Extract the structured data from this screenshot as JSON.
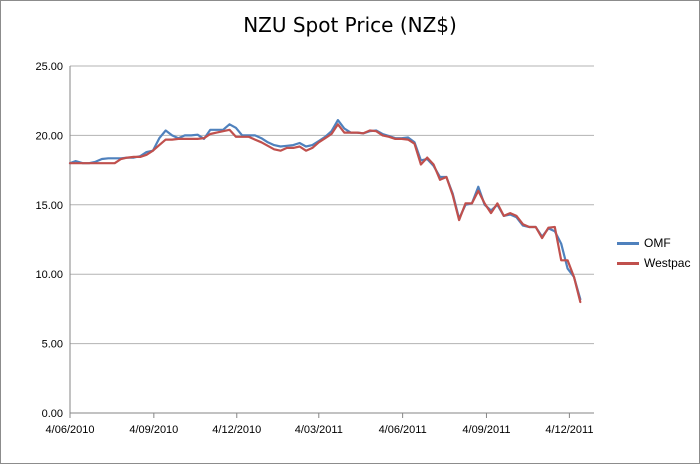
{
  "chart_data": {
    "type": "line",
    "title": "NZU Spot Price (NZ$)",
    "xlabel": "",
    "ylabel": "",
    "ylim": [
      0,
      25
    ],
    "y_ticks": [
      "0.00",
      "5.00",
      "10.00",
      "15.00",
      "20.00",
      "25.00"
    ],
    "x_ticks": [
      "4/06/2010",
      "4/09/2010",
      "4/12/2010",
      "4/03/2011",
      "4/06/2011",
      "4/09/2011",
      "4/12/2011"
    ],
    "x_range": [
      "2010-06-04",
      "2011-12-31"
    ],
    "grid": "horizontal",
    "legend_position": "right",
    "series": [
      {
        "name": "OMF",
        "color": "#4f81bd",
        "points": [
          [
            "2010-06-04",
            18.0
          ],
          [
            "2010-06-10",
            18.15
          ],
          [
            "2010-06-18",
            18.0
          ],
          [
            "2010-06-25",
            18.0
          ],
          [
            "2010-07-02",
            18.1
          ],
          [
            "2010-07-09",
            18.3
          ],
          [
            "2010-07-16",
            18.35
          ],
          [
            "2010-07-23",
            18.35
          ],
          [
            "2010-07-30",
            18.35
          ],
          [
            "2010-08-06",
            18.4
          ],
          [
            "2010-08-13",
            18.4
          ],
          [
            "2010-08-20",
            18.5
          ],
          [
            "2010-08-27",
            18.8
          ],
          [
            "2010-09-03",
            18.9
          ],
          [
            "2010-09-10",
            19.8
          ],
          [
            "2010-09-17",
            20.35
          ],
          [
            "2010-09-24",
            20.0
          ],
          [
            "2010-10-01",
            19.8
          ],
          [
            "2010-10-08",
            20.0
          ],
          [
            "2010-10-15",
            20.0
          ],
          [
            "2010-10-22",
            20.05
          ],
          [
            "2010-10-29",
            19.75
          ],
          [
            "2010-11-05",
            20.4
          ],
          [
            "2010-11-12",
            20.4
          ],
          [
            "2010-11-19",
            20.4
          ],
          [
            "2010-11-26",
            20.8
          ],
          [
            "2010-12-03",
            20.55
          ],
          [
            "2010-12-10",
            20.0
          ],
          [
            "2010-12-17",
            20.0
          ],
          [
            "2010-12-24",
            20.0
          ],
          [
            "2010-12-31",
            19.8
          ],
          [
            "2011-01-07",
            19.5
          ],
          [
            "2011-01-14",
            19.3
          ],
          [
            "2011-01-21",
            19.2
          ],
          [
            "2011-01-28",
            19.25
          ],
          [
            "2011-02-04",
            19.3
          ],
          [
            "2011-02-11",
            19.45
          ],
          [
            "2011-02-18",
            19.2
          ],
          [
            "2011-02-25",
            19.3
          ],
          [
            "2011-03-04",
            19.6
          ],
          [
            "2011-03-11",
            19.9
          ],
          [
            "2011-03-18",
            20.3
          ],
          [
            "2011-03-25",
            21.1
          ],
          [
            "2011-04-01",
            20.5
          ],
          [
            "2011-04-08",
            20.2
          ],
          [
            "2011-04-15",
            20.2
          ],
          [
            "2011-04-22",
            20.15
          ],
          [
            "2011-04-29",
            20.3
          ],
          [
            "2011-05-06",
            20.35
          ],
          [
            "2011-05-13",
            20.1
          ],
          [
            "2011-05-20",
            19.95
          ],
          [
            "2011-05-27",
            19.8
          ],
          [
            "2011-06-03",
            19.8
          ],
          [
            "2011-06-10",
            19.85
          ],
          [
            "2011-06-17",
            19.5
          ],
          [
            "2011-06-24",
            18.2
          ],
          [
            "2011-07-01",
            18.3
          ],
          [
            "2011-07-08",
            17.8
          ],
          [
            "2011-07-15",
            17.0
          ],
          [
            "2011-07-22",
            17.0
          ],
          [
            "2011-07-29",
            15.8
          ],
          [
            "2011-08-05",
            14.0
          ],
          [
            "2011-08-12",
            15.0
          ],
          [
            "2011-08-19",
            15.1
          ],
          [
            "2011-08-26",
            16.3
          ],
          [
            "2011-09-02",
            15.0
          ],
          [
            "2011-09-09",
            14.6
          ],
          [
            "2011-09-16",
            15.0
          ],
          [
            "2011-09-23",
            14.2
          ],
          [
            "2011-09-30",
            14.3
          ],
          [
            "2011-10-07",
            14.1
          ],
          [
            "2011-10-14",
            13.5
          ],
          [
            "2011-10-21",
            13.4
          ],
          [
            "2011-10-28",
            13.4
          ],
          [
            "2011-11-04",
            12.7
          ],
          [
            "2011-11-11",
            13.3
          ],
          [
            "2011-11-18",
            13.1
          ],
          [
            "2011-11-25",
            12.2
          ],
          [
            "2011-12-02",
            10.4
          ],
          [
            "2011-12-09",
            9.8
          ],
          [
            "2011-12-16",
            8.2
          ]
        ]
      },
      {
        "name": "Westpac",
        "color": "#c0504d",
        "points": [
          [
            "2010-06-04",
            18.0
          ],
          [
            "2010-06-10",
            18.0
          ],
          [
            "2010-06-18",
            18.0
          ],
          [
            "2010-06-25",
            18.0
          ],
          [
            "2010-07-02",
            18.0
          ],
          [
            "2010-07-09",
            18.0
          ],
          [
            "2010-07-16",
            18.0
          ],
          [
            "2010-07-23",
            18.0
          ],
          [
            "2010-07-30",
            18.3
          ],
          [
            "2010-08-06",
            18.4
          ],
          [
            "2010-08-13",
            18.45
          ],
          [
            "2010-08-20",
            18.45
          ],
          [
            "2010-08-27",
            18.6
          ],
          [
            "2010-09-03",
            18.9
          ],
          [
            "2010-09-10",
            19.3
          ],
          [
            "2010-09-17",
            19.7
          ],
          [
            "2010-09-24",
            19.7
          ],
          [
            "2010-10-01",
            19.75
          ],
          [
            "2010-10-08",
            19.75
          ],
          [
            "2010-10-15",
            19.75
          ],
          [
            "2010-10-22",
            19.75
          ],
          [
            "2010-10-29",
            19.8
          ],
          [
            "2010-11-05",
            20.1
          ],
          [
            "2010-11-12",
            20.2
          ],
          [
            "2010-11-19",
            20.3
          ],
          [
            "2010-11-26",
            20.4
          ],
          [
            "2010-12-03",
            19.9
          ],
          [
            "2010-12-10",
            19.9
          ],
          [
            "2010-12-17",
            19.9
          ],
          [
            "2010-12-24",
            19.7
          ],
          [
            "2010-12-31",
            19.5
          ],
          [
            "2011-01-07",
            19.25
          ],
          [
            "2011-01-14",
            19.0
          ],
          [
            "2011-01-21",
            18.9
          ],
          [
            "2011-01-28",
            19.1
          ],
          [
            "2011-02-04",
            19.1
          ],
          [
            "2011-02-11",
            19.2
          ],
          [
            "2011-02-18",
            18.9
          ],
          [
            "2011-02-25",
            19.1
          ],
          [
            "2011-03-04",
            19.5
          ],
          [
            "2011-03-11",
            19.8
          ],
          [
            "2011-03-18",
            20.1
          ],
          [
            "2011-03-25",
            20.8
          ],
          [
            "2011-04-01",
            20.2
          ],
          [
            "2011-04-08",
            20.2
          ],
          [
            "2011-04-15",
            20.2
          ],
          [
            "2011-04-22",
            20.15
          ],
          [
            "2011-04-29",
            20.35
          ],
          [
            "2011-05-06",
            20.3
          ],
          [
            "2011-05-13",
            20.0
          ],
          [
            "2011-05-20",
            19.9
          ],
          [
            "2011-05-27",
            19.75
          ],
          [
            "2011-06-03",
            19.75
          ],
          [
            "2011-06-10",
            19.7
          ],
          [
            "2011-06-17",
            19.4
          ],
          [
            "2011-06-24",
            17.9
          ],
          [
            "2011-07-01",
            18.4
          ],
          [
            "2011-07-08",
            17.9
          ],
          [
            "2011-07-15",
            16.8
          ],
          [
            "2011-07-22",
            17.0
          ],
          [
            "2011-07-29",
            15.7
          ],
          [
            "2011-08-05",
            13.9
          ],
          [
            "2011-08-12",
            15.1
          ],
          [
            "2011-08-19",
            15.1
          ],
          [
            "2011-08-26",
            16.0
          ],
          [
            "2011-09-02",
            15.1
          ],
          [
            "2011-09-09",
            14.4
          ],
          [
            "2011-09-16",
            15.1
          ],
          [
            "2011-09-23",
            14.2
          ],
          [
            "2011-09-30",
            14.4
          ],
          [
            "2011-10-07",
            14.2
          ],
          [
            "2011-10-14",
            13.6
          ],
          [
            "2011-10-21",
            13.4
          ],
          [
            "2011-10-28",
            13.4
          ],
          [
            "2011-11-04",
            12.6
          ],
          [
            "2011-11-11",
            13.35
          ],
          [
            "2011-11-18",
            13.4
          ],
          [
            "2011-11-25",
            11.0
          ],
          [
            "2011-12-02",
            11.0
          ],
          [
            "2011-12-09",
            9.8
          ],
          [
            "2011-12-16",
            8.0
          ]
        ]
      }
    ]
  }
}
